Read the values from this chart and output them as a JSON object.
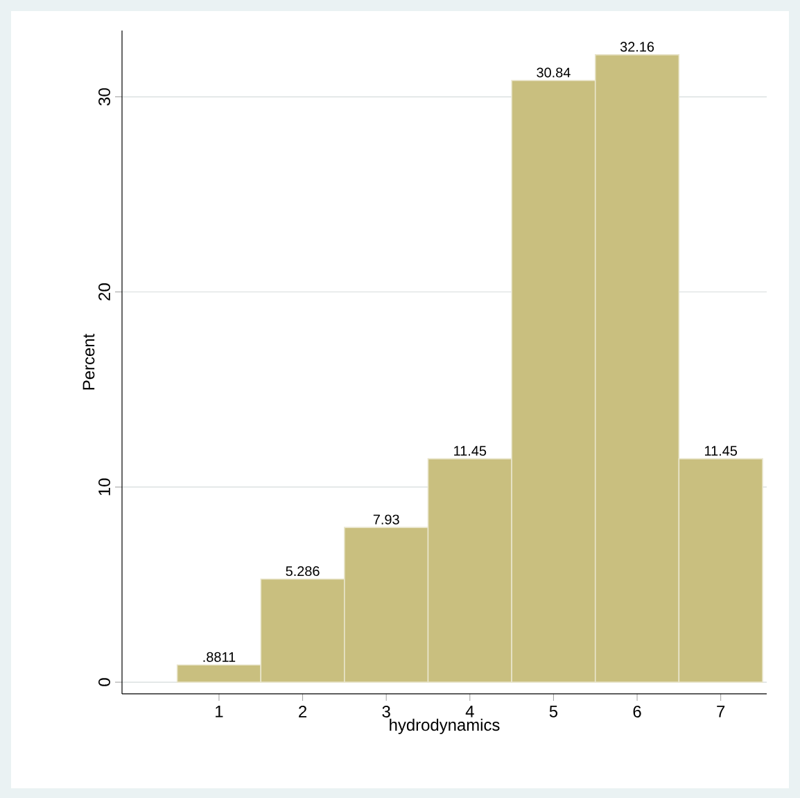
{
  "chart_data": {
    "type": "histogram",
    "xlabel": "hydrodynamics",
    "ylabel": "Percent",
    "bins": [
      0.5,
      1.5,
      2.5,
      3.5,
      4.5,
      5.5,
      6.5,
      7.5
    ],
    "values": [
      0.8811,
      5.286,
      7.93,
      11.45,
      30.84,
      32.16,
      11.45
    ],
    "value_labels": [
      ".8811",
      "5.286",
      "7.93",
      "11.45",
      "30.84",
      "32.16",
      "11.45"
    ],
    "color": "#c9bf7f",
    "xlim": [
      -0.16,
      7.55
    ],
    "ylim": [
      -0.6,
      33.4
    ],
    "xticks": [
      1,
      2,
      3,
      4,
      5,
      6,
      7
    ],
    "yticks": [
      0,
      10,
      20,
      30
    ],
    "grid": "y"
  }
}
